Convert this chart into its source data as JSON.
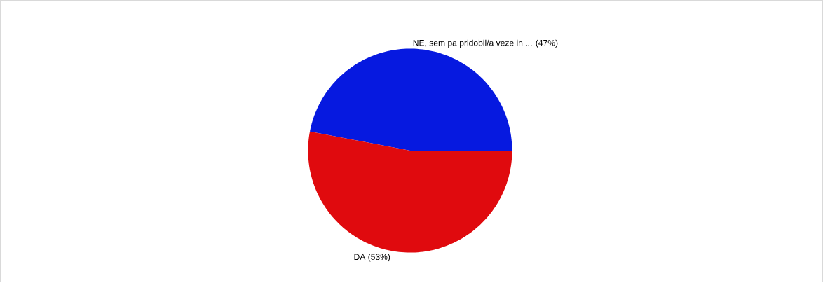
{
  "chart_data": {
    "type": "pie",
    "categories": [
      "NE, sem pa pridobil/a veze in ...",
      "DA"
    ],
    "values": [
      47,
      53
    ],
    "colors": [
      "#0619e0",
      "#e00a0e"
    ],
    "value_labels": [
      "(47%)",
      "(53%)"
    ]
  }
}
